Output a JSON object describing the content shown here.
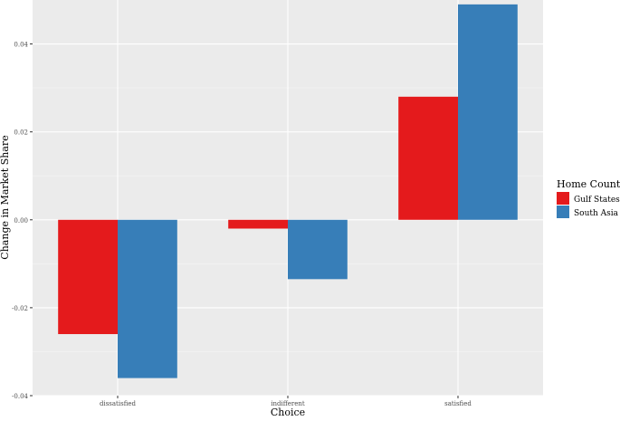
{
  "chart_data": {
    "type": "bar",
    "categories": [
      "dissatisfied",
      "indifferent",
      "satisfied"
    ],
    "series": [
      {
        "name": "Gulf States",
        "color": "#e41a1c",
        "values": [
          -0.026,
          -0.002,
          0.028
        ]
      },
      {
        "name": "South Asia",
        "color": "#377eb8",
        "values": [
          -0.036,
          -0.0135,
          0.049
        ]
      }
    ],
    "xlabel": "Choice",
    "ylabel": "Change in Market Share",
    "ylim": [
      -0.04,
      0.05
    ],
    "yticks": [
      -0.04,
      -0.02,
      0.0,
      0.02,
      0.04
    ],
    "ytick_labels": [
      "-0.04",
      "-0.02",
      "0.00",
      "0.02",
      "0.04"
    ],
    "grid": true,
    "legend": {
      "title": "Home Country",
      "position": "right"
    },
    "panel_background": "#ebebeb"
  }
}
